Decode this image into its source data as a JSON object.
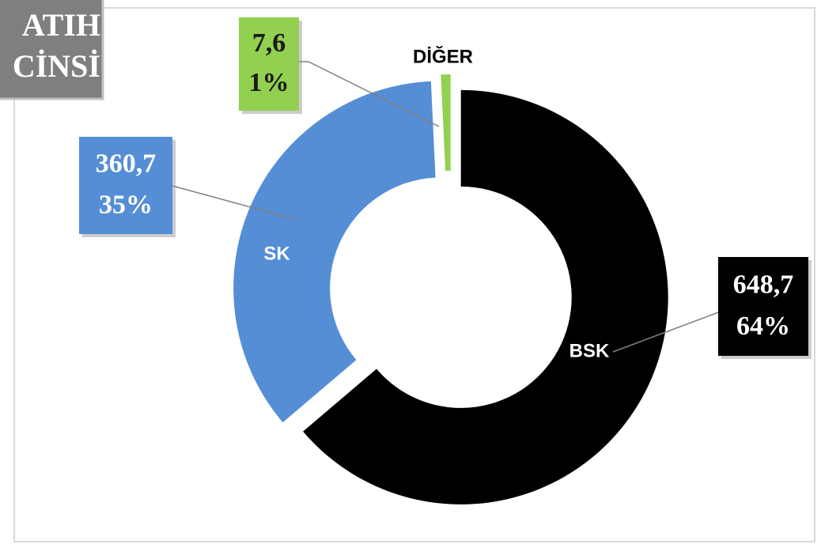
{
  "chart_data": {
    "type": "donut",
    "title_lines": [
      "ATIH",
      "CİNSİ"
    ],
    "categories": [
      "BSK",
      "SK",
      "DİĞER"
    ],
    "values": [
      648.7,
      360.7,
      7.6
    ],
    "value_labels": [
      "648,7",
      "360,7",
      "7,6"
    ],
    "percentages": [
      64,
      35,
      1
    ],
    "percentage_labels": [
      "64%",
      "35%",
      "1%"
    ],
    "colors": [
      "#000000",
      "#558ed5",
      "#92d050"
    ]
  }
}
